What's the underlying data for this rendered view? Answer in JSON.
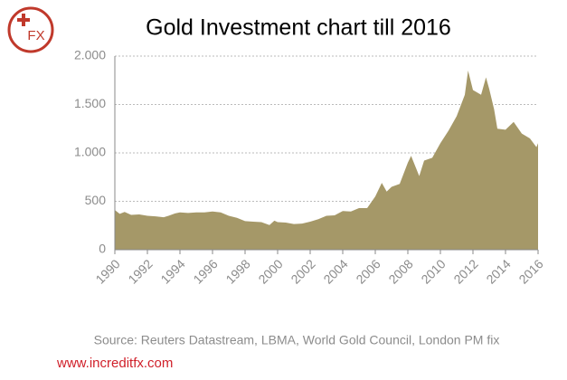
{
  "logo": "FX",
  "chart_data": {
    "type": "area",
    "title": "Gold Investment chart till 2016",
    "source": "Source: Reuters Datastream, LBMA, World Gold Council, London PM fix",
    "website": "www.increditfx.com",
    "color": "#a59868",
    "grid": true,
    "xlim": [
      1990,
      2016
    ],
    "xticks": [
      1990,
      1992,
      1994,
      1996,
      1998,
      2000,
      2002,
      2004,
      2006,
      2008,
      2010,
      2012,
      2014,
      2016
    ],
    "ylim": [
      0,
      2000
    ],
    "yticks": [
      0,
      500,
      {
        "value": 1000,
        "label": "1.000"
      },
      {
        "value": 1500,
        "label": "1.500"
      },
      {
        "value": 2000,
        "label": "2.000"
      }
    ],
    "x": [
      1990,
      1990.3,
      1990.6,
      1991,
      1991.5,
      1992,
      1992.5,
      1993,
      1993.3,
      1993.7,
      1994,
      1994.5,
      1995,
      1995.5,
      1996,
      1996.5,
      1997,
      1997.5,
      1998,
      1998.5,
      1999,
      1999.5,
      1999.8,
      2000,
      2000.5,
      2001,
      2001.5,
      2002,
      2002.5,
      2003,
      2003.5,
      2004,
      2004.5,
      2005,
      2005.5,
      2006,
      2006.4,
      2006.7,
      2007,
      2007.5,
      2008,
      2008.2,
      2008.7,
      2009,
      2009.5,
      2010,
      2010.5,
      2011,
      2011.5,
      2011.7,
      2012,
      2012.5,
      2012.8,
      2013,
      2013.3,
      2013.5,
      2014,
      2014.5,
      2015,
      2015.5,
      2015.9,
      2016
    ],
    "values": [
      410,
      370,
      390,
      360,
      365,
      350,
      345,
      335,
      350,
      375,
      385,
      380,
      385,
      385,
      395,
      385,
      350,
      330,
      295,
      290,
      285,
      255,
      300,
      285,
      280,
      265,
      270,
      290,
      315,
      350,
      355,
      400,
      395,
      430,
      430,
      550,
      690,
      600,
      650,
      680,
      900,
      970,
      760,
      920,
      950,
      1100,
      1230,
      1380,
      1600,
      1850,
      1650,
      1600,
      1780,
      1660,
      1450,
      1250,
      1240,
      1320,
      1200,
      1150,
      1060,
      1100
    ]
  }
}
